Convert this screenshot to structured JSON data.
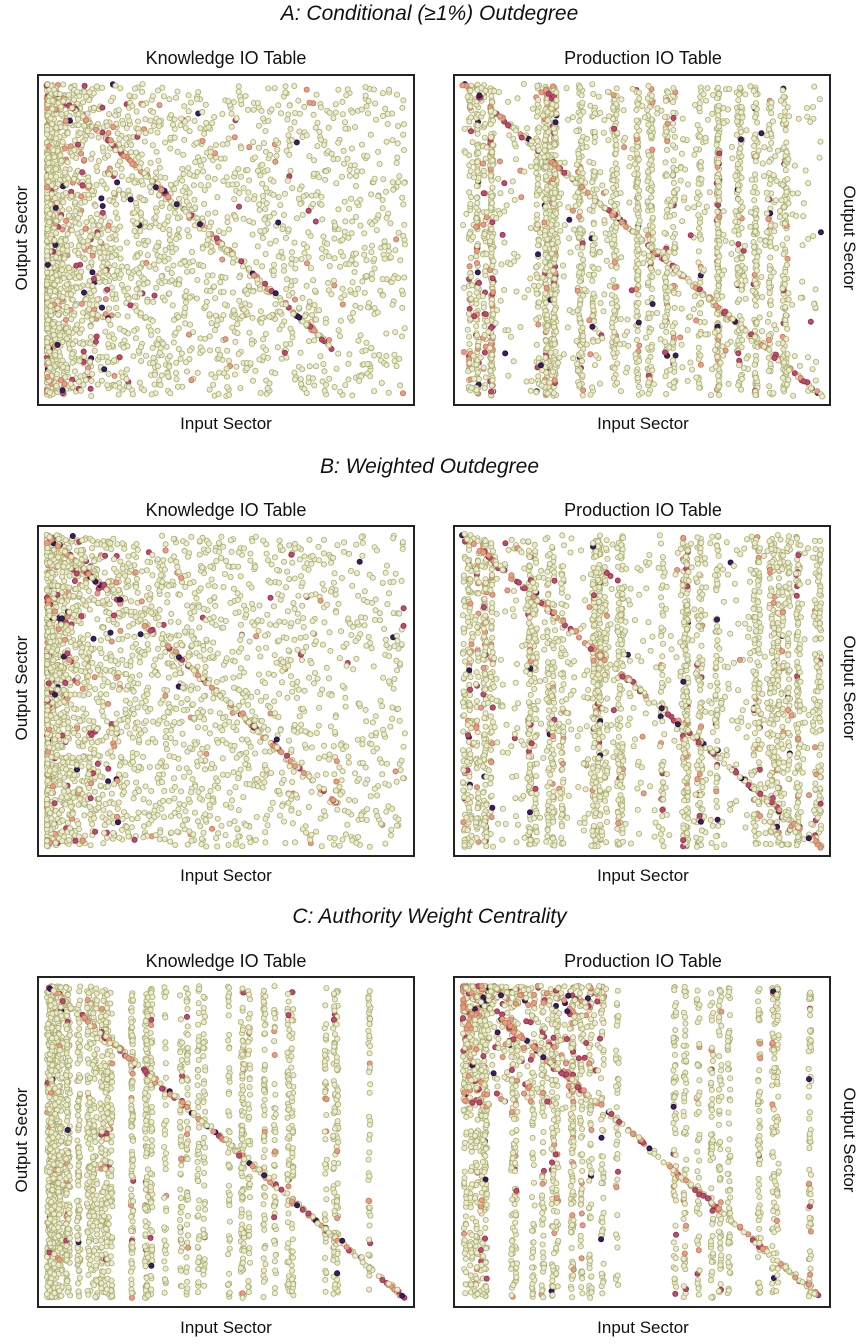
{
  "sections": [
    {
      "title": "A: Conditional (≥1%) Outdegree"
    },
    {
      "title": "B: Weighted Outdegree"
    },
    {
      "title": "C: Authority Weight Centrality"
    }
  ],
  "panel_titles": {
    "knowledge": "Knowledge IO Table",
    "production": "Production IO Table"
  },
  "axis_labels": {
    "x": "Input Sector",
    "y": "Output Sector"
  },
  "colors": {
    "low": "#ecebcf",
    "mid": "#e3a086",
    "high": "#c04a68",
    "highest": "#3a1e5e",
    "frame": "#222222"
  },
  "chart_data": [
    {
      "type": "scatter",
      "section": "A: Conditional (≥1%) Outdegree",
      "title": "Knowledge IO Table",
      "xlabel": "Input Sector",
      "ylabel": "Output Sector",
      "grid": false,
      "legend": "none",
      "pattern": "dense columns at low input sectors, diagonal band ending at about 80% of x",
      "diagonal": {
        "x": [
          0,
          0.8
        ],
        "y": [
          0,
          0.85
        ]
      }
    },
    {
      "type": "scatter",
      "section": "A: Conditional (≥1%) Outdegree",
      "title": "Production IO Table",
      "xlabel": "Input Sector",
      "ylabel": "Output Sector",
      "grid": false,
      "legend": "none",
      "pattern": "vertical streaks across all input sectors with full diagonal",
      "diagonal": {
        "x": [
          0,
          1
        ],
        "y": [
          0,
          1
        ]
      }
    },
    {
      "type": "scatter",
      "section": "B: Weighted Outdegree",
      "title": "Knowledge IO Table",
      "xlabel": "Input Sector",
      "ylabel": "Output Sector",
      "grid": false,
      "legend": "none",
      "pattern": "dense columns at low input sectors, diagonal band ending at about 85% of x",
      "diagonal": {
        "x": [
          0,
          0.85
        ],
        "y": [
          0,
          0.9
        ]
      }
    },
    {
      "type": "scatter",
      "section": "B: Weighted Outdegree",
      "title": "Production IO Table",
      "xlabel": "Input Sector",
      "ylabel": "Output Sector",
      "grid": false,
      "legend": "none",
      "pattern": "vertical streaks across all input sectors with full diagonal",
      "diagonal": {
        "x": [
          0,
          1
        ],
        "y": [
          0,
          1
        ]
      }
    },
    {
      "type": "scatter",
      "section": "C: Authority Weight Centrality",
      "title": "Knowledge IO Table",
      "xlabel": "Input Sector",
      "ylabel": "Output Sector",
      "grid": false,
      "legend": "none",
      "pattern": "vertical streaks across input sectors with full diagonal",
      "diagonal": {
        "x": [
          0,
          1
        ],
        "y": [
          0,
          1
        ]
      }
    },
    {
      "type": "scatter",
      "section": "C: Authority Weight Centrality",
      "title": "Production IO Table",
      "xlabel": "Input Sector",
      "ylabel": "Output Sector",
      "grid": false,
      "legend": "none",
      "pattern": "vertical streaks with full diagonal, concentrated upper-left",
      "diagonal": {
        "x": [
          0,
          1
        ],
        "y": [
          0,
          1
        ]
      }
    }
  ]
}
